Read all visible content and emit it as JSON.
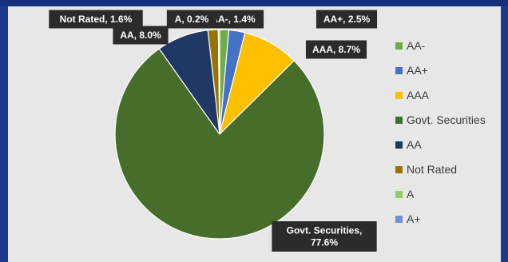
{
  "chart_data": {
    "type": "pie",
    "title": "",
    "legend_position": "right",
    "series": [
      {
        "name": "AA-",
        "value": 1.4,
        "label": "AA-, 1.4%",
        "color": "#70ad47"
      },
      {
        "name": "AA+",
        "value": 2.5,
        "label": "AA+, 2.5%",
        "color": "#4472c4"
      },
      {
        "name": "AAA",
        "value": 8.7,
        "label": "AAA, 8.7%",
        "color": "#ffc000"
      },
      {
        "name": "Govt. Securities",
        "value": 77.6,
        "label": "Govt. Securities, 77.6%",
        "label_lines": [
          "Govt. Securities,",
          "77.6%"
        ],
        "color": "#466e2a"
      },
      {
        "name": "AA",
        "value": 8.0,
        "label": "AA, 8.0%",
        "color": "#1f3864"
      },
      {
        "name": "Not Rated",
        "value": 1.6,
        "label": "Not Rated, 1.6%",
        "color": "#997300"
      },
      {
        "name": "A",
        "value": 0.2,
        "label": "A, 0.2%",
        "color": "#8fcf6a"
      },
      {
        "name": "A+",
        "value": 0.0,
        "label": "A+",
        "color": "#6f8fd6"
      }
    ]
  }
}
